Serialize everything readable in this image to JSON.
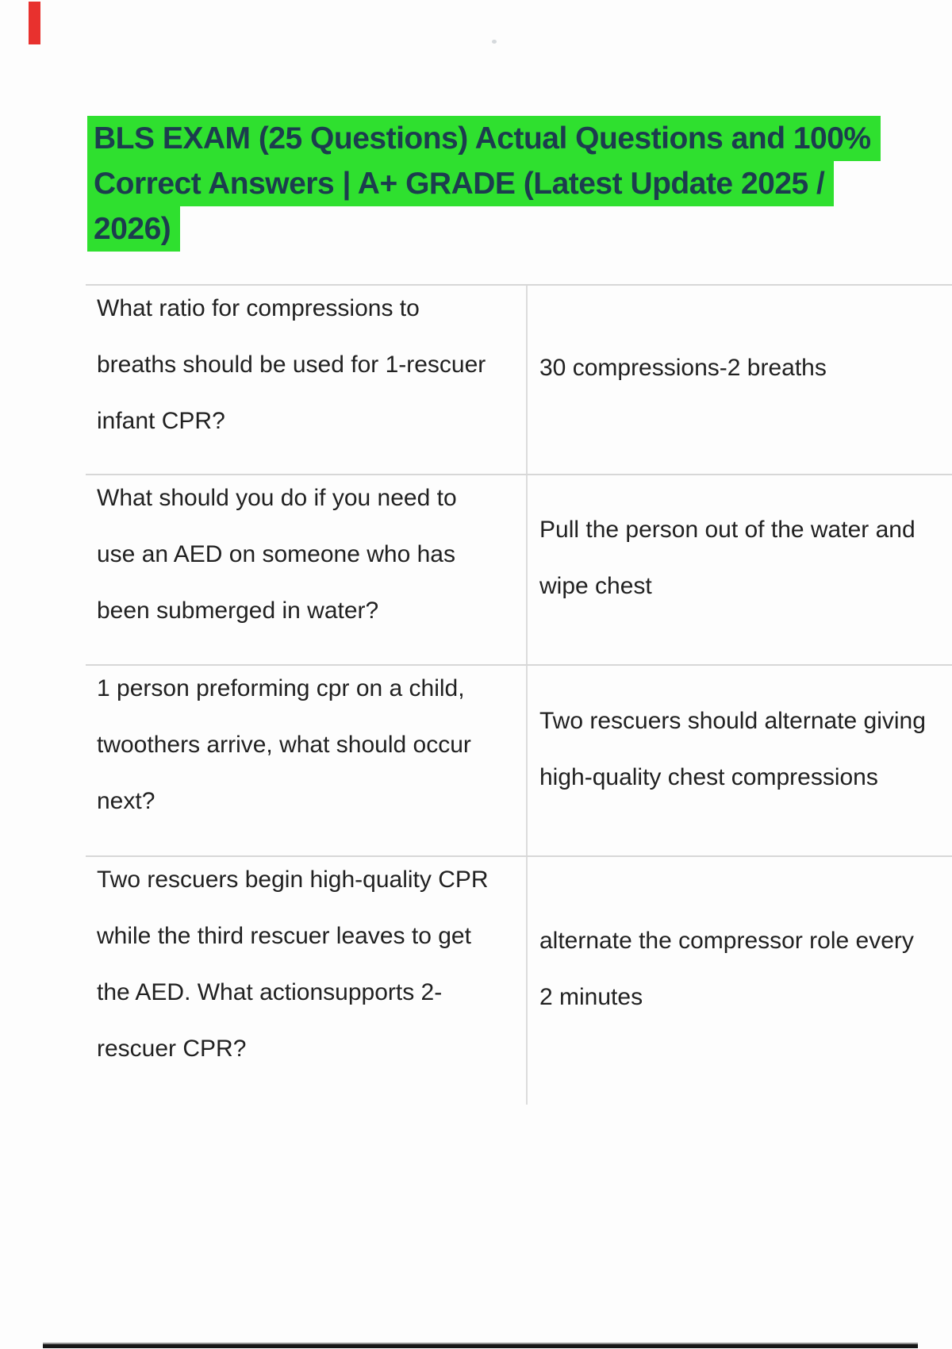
{
  "document": {
    "title": {
      "lines": [
        "BLS EXAM (25 Questions) Actual Questions and 100%",
        "Correct Answers | A+ GRADE (Latest Update 2025 /",
        "2026)"
      ],
      "highlight_color": "#2fe02f",
      "text_color": "#1c3d4e"
    },
    "qa_table": {
      "rows": [
        {
          "question_lines": [
            "What ratio for compressions to",
            "breaths should be used for 1-rescuer",
            "infant CPR?"
          ],
          "answer_lines": [
            "30 compressions-2 breaths"
          ]
        },
        {
          "question_lines": [
            "What should you do if you need to",
            "use an AED on someone who has",
            "been submerged in water?"
          ],
          "answer_lines": [
            "Pull the person out of the water and",
            "wipe chest"
          ]
        },
        {
          "question_lines": [
            "1 person preforming cpr on a child,",
            "twoothers arrive, what should occur",
            "next?"
          ],
          "answer_lines": [
            "Two rescuers should alternate giving",
            "high-quality chest compressions"
          ]
        },
        {
          "question_lines": [
            "Two rescuers begin high-quality CPR",
            "while the third rescuer leaves to get",
            "the AED. What actionsupports 2-",
            "rescuer CPR?"
          ],
          "answer_lines": [
            "alternate the compressor role every",
            "2 minutes"
          ]
        }
      ]
    },
    "decorations": {
      "red_marker_color": "#e8312e",
      "text_body_color": "#212121"
    }
  }
}
